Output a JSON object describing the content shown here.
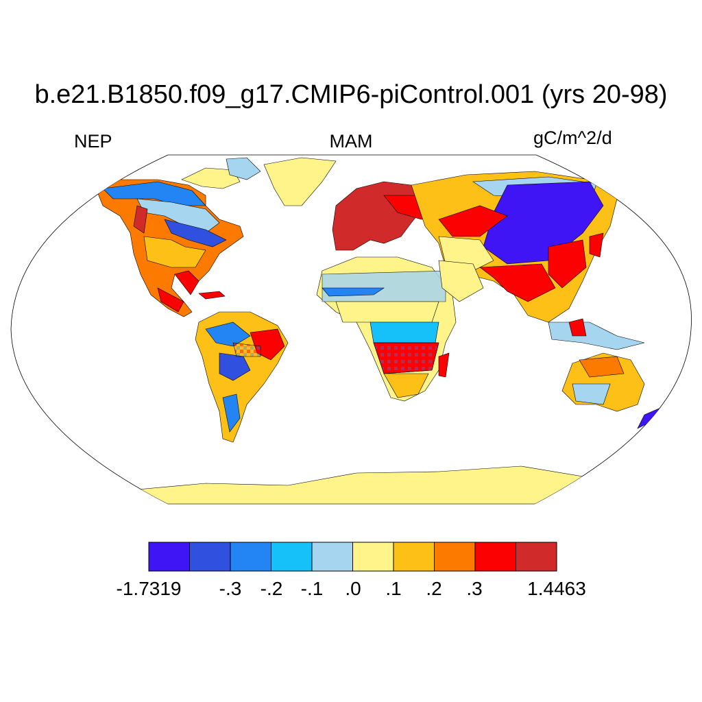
{
  "title": "b.e21.B1850.f09_g17.CMIP6-piControl.001 (yrs 20-98)",
  "variable": "NEP",
  "season": "MAM",
  "units": "gC/m^2/d",
  "colorbar": {
    "colors": [
      "#3f15f5",
      "#3050e0",
      "#2385f4",
      "#16c0f8",
      "#a6d5ef",
      "#fef489",
      "#fdc016",
      "#fd7a00",
      "#fc0101",
      "#d02a2a"
    ],
    "labels": [
      "-1.7319",
      "-.3",
      "-.2",
      "-.1",
      ".0",
      ".1",
      ".2",
      ".3",
      "1.4463"
    ]
  },
  "map": {
    "projection": "Robinson",
    "ocean_color": "#ffffff",
    "coastline_color": "#000000"
  }
}
